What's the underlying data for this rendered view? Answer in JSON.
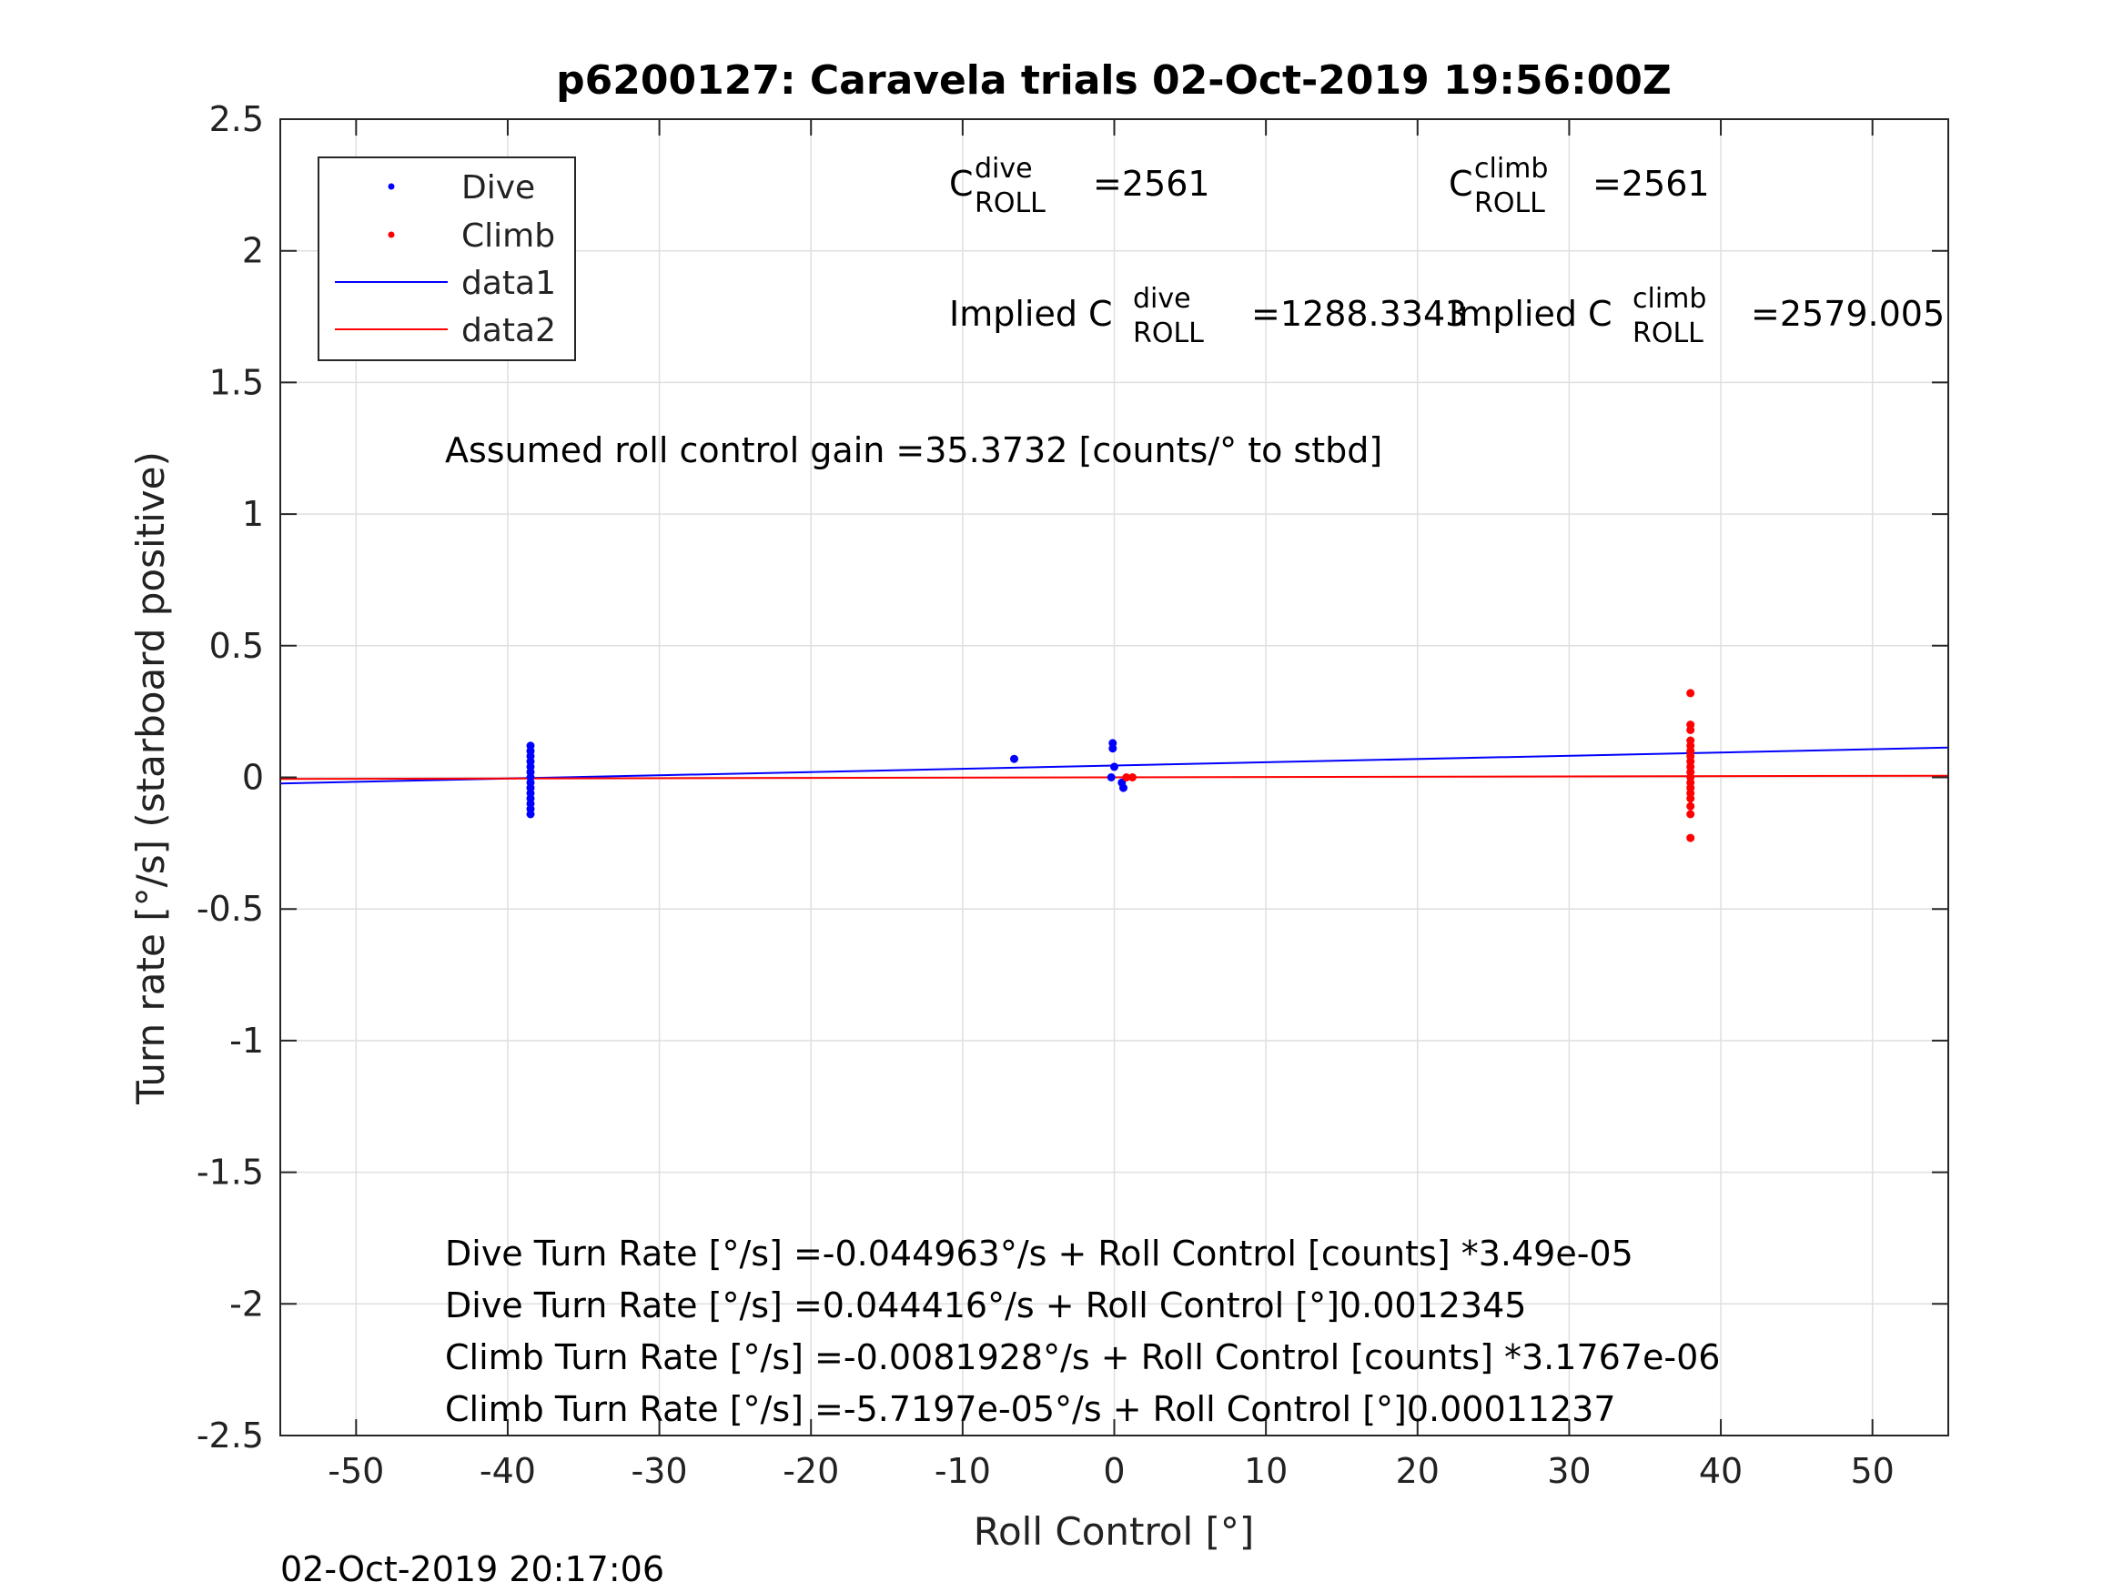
{
  "chart_data": {
    "type": "scatter",
    "title": "p6200127: Caravela trials 02-Oct-2019 19:56:00Z",
    "xlabel": "Roll Control [°]",
    "ylabel": "Turn rate [°/s] (starboard positive)",
    "xlim": [
      -55,
      55
    ],
    "ylim": [
      -2.5,
      2.5
    ],
    "xticks": [
      -50,
      -40,
      -30,
      -20,
      -10,
      0,
      10,
      20,
      30,
      40,
      50
    ],
    "xtick_labels": [
      "-50",
      "-40",
      "-30",
      "-20",
      "-10",
      "0",
      "10",
      "20",
      "30",
      "40",
      "50"
    ],
    "yticks": [
      -2.5,
      -2,
      -1.5,
      -1,
      -0.5,
      0,
      0.5,
      1,
      1.5,
      2,
      2.5
    ],
    "ytick_labels": [
      "-2.5",
      "-2",
      "-1.5",
      "-1",
      "-0.5",
      "0",
      "0.5",
      "1",
      "1.5",
      "2",
      "2.5"
    ],
    "grid": true,
    "legend_position": "top-left",
    "series": [
      {
        "name": "Dive",
        "style": "points",
        "color": "#0000ff",
        "points": [
          [
            -38.5,
            0.12
          ],
          [
            -38.5,
            0.1
          ],
          [
            -38.5,
            0.08
          ],
          [
            -38.5,
            0.06
          ],
          [
            -38.5,
            0.04
          ],
          [
            -38.5,
            0.02
          ],
          [
            -38.5,
            0.0
          ],
          [
            -38.5,
            -0.02
          ],
          [
            -38.5,
            -0.04
          ],
          [
            -38.5,
            -0.06
          ],
          [
            -38.5,
            -0.08
          ],
          [
            -38.5,
            -0.1
          ],
          [
            -38.5,
            -0.12
          ],
          [
            -38.5,
            -0.14
          ],
          [
            -6.6,
            0.07
          ],
          [
            -0.1,
            0.13
          ],
          [
            -0.1,
            0.11
          ],
          [
            0.0,
            0.04
          ],
          [
            -0.2,
            0.0
          ],
          [
            0.5,
            -0.02
          ],
          [
            0.6,
            -0.04
          ]
        ]
      },
      {
        "name": "Climb",
        "style": "points",
        "color": "#ff0000",
        "points": [
          [
            38.0,
            0.32
          ],
          [
            38.0,
            0.2
          ],
          [
            38.0,
            0.18
          ],
          [
            38.0,
            0.14
          ],
          [
            38.0,
            0.12
          ],
          [
            38.0,
            0.1
          ],
          [
            38.0,
            0.08
          ],
          [
            38.0,
            0.06
          ],
          [
            38.0,
            0.04
          ],
          [
            38.0,
            0.02
          ],
          [
            38.0,
            0.0
          ],
          [
            38.0,
            -0.02
          ],
          [
            38.0,
            -0.04
          ],
          [
            38.0,
            -0.06
          ],
          [
            38.0,
            -0.08
          ],
          [
            38.0,
            -0.11
          ],
          [
            38.0,
            -0.14
          ],
          [
            38.0,
            -0.23
          ],
          [
            1.2,
            0.0
          ],
          [
            0.8,
            0.0
          ]
        ]
      },
      {
        "name": "data1",
        "style": "line",
        "color": "#0000ff",
        "points": [
          [
            -55,
            -0.023
          ],
          [
            55,
            0.113
          ]
        ]
      },
      {
        "name": "data2",
        "style": "line",
        "color": "#ff0000",
        "points": [
          [
            -55,
            -0.0063
          ],
          [
            55,
            0.0063
          ]
        ]
      }
    ],
    "annotations": [
      {
        "base": "C",
        "sup": "dive",
        "sub": "ROLL",
        "value": "=2561"
      },
      {
        "base": "C",
        "sup": "climb",
        "sub": "ROLL",
        "value": "=2561"
      },
      {
        "base": "Implied C",
        "sup": "dive",
        "sub": "ROLL",
        "value": "=1288.3343"
      },
      {
        "base": "Implied C",
        "sup": "climb",
        "sub": "ROLL",
        "value": "=2579.005"
      }
    ],
    "gain_text": "Assumed roll control gain =35.3732 [counts/° to stbd]",
    "equations": [
      "Dive Turn Rate [°/s] =-0.044963°/s + Roll Control [counts] *3.49e-05",
      "Dive Turn Rate [°/s] =0.044416°/s + Roll Control [°]0.0012345",
      "Climb Turn Rate [°/s] =-0.0081928°/s + Roll Control [counts] *3.1767e-06",
      "Climb Turn Rate [°/s] =-5.7197e-05°/s + Roll Control [°]0.00011237"
    ],
    "footer_timestamp": "02-Oct-2019 20:17:06"
  }
}
